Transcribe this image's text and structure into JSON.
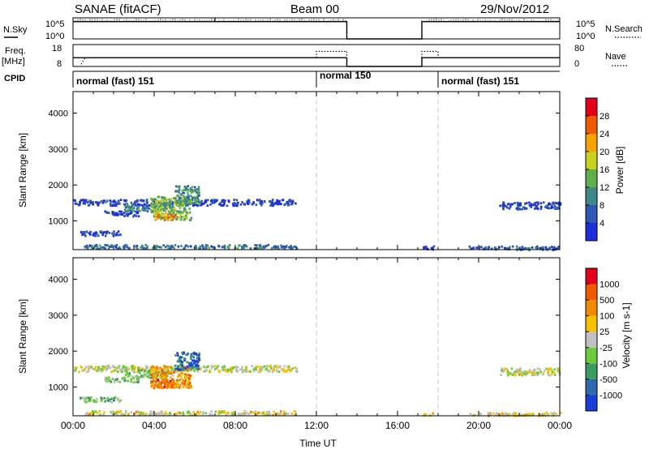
{
  "header": {
    "title": "SANAE (fitACF)",
    "beam": "Beam 00",
    "date": "29/Nov/2012"
  },
  "top_panels": {
    "nsky_label": "N.Sky",
    "nsearch_label": "N.Search",
    "left_ticks": [
      "10^5",
      "10^0"
    ],
    "right_ticks": [
      "10^5",
      "10^0"
    ],
    "freq_label": "Freq.",
    "freq_unit": "[MHz]",
    "freq_ticks": [
      "18",
      "8"
    ],
    "nave_label": "Nave",
    "nave_ticks": [
      "80",
      "0"
    ],
    "cpid_label": "CPID"
  },
  "cpid": {
    "segments": [
      {
        "label": "normal (fast) 151",
        "start": 0.0,
        "end": 12.0
      },
      {
        "label": "normal 150",
        "start": 12.0,
        "end": 18.0
      },
      {
        "label": "normal (fast) 151",
        "start": 18.0,
        "end": 24.0
      }
    ]
  },
  "chart_data": [
    {
      "type": "line",
      "name": "N.Sky / N.Search",
      "xlim": [
        0,
        24
      ],
      "ylim": [
        0,
        1
      ],
      "active_intervals": [
        [
          0.0,
          13.5
        ],
        [
          17.2,
          24.0
        ]
      ],
      "x": [
        0.0,
        13.5,
        13.5,
        17.2,
        17.2,
        24.0
      ],
      "y": [
        0.82,
        0.82,
        0.0,
        0.0,
        0.82,
        0.82
      ],
      "spikes_x": [
        7.0
      ]
    },
    {
      "type": "line",
      "name": "Freq. / Nave",
      "xlim": [
        0,
        24
      ],
      "freq_ylim": [
        8,
        18
      ],
      "nave_ylim": [
        0,
        80
      ],
      "series": [
        {
          "name": "Freq.",
          "x": [
            0.0,
            13.5,
            13.5,
            17.2,
            17.2,
            24.0
          ],
          "y": [
            12.0,
            12.0,
            8.0,
            8.0,
            12.0,
            12.0
          ]
        },
        {
          "name": "Nave",
          "x": [
            12.0,
            13.5,
            17.2,
            18.0
          ],
          "y": [
            55,
            55,
            55,
            55
          ]
        }
      ]
    },
    {
      "type": "heatmap",
      "variable": "Power",
      "xlabel": "",
      "ylabel": "Slant Range [km]",
      "xlim": [
        0,
        24
      ],
      "ylim": [
        200,
        4600
      ],
      "yticks": [
        "1000",
        "2000",
        "3000",
        "4000"
      ],
      "colorbar_label": "Power [dB]",
      "colorbar_ticks": [
        "4",
        "8",
        "12",
        "16",
        "20",
        "24",
        "28"
      ],
      "colors": [
        "#1f2fd6",
        "#2e57b8",
        "#3f8a88",
        "#5fb04c",
        "#c9d21f",
        "#f4a300",
        "#f05a00",
        "#e3001b"
      ],
      "regions": [
        {
          "t0": 0.0,
          "t1": 11.0,
          "r0": 1450,
          "r1": 1620,
          "level": 0.12
        },
        {
          "t0": 2.5,
          "t1": 4.6,
          "r0": 1280,
          "r1": 1520,
          "level": 0.3
        },
        {
          "t0": 3.8,
          "t1": 5.8,
          "r0": 1050,
          "r1": 1700,
          "level": 0.45
        },
        {
          "t0": 4.0,
          "t1": 5.0,
          "r0": 1050,
          "r1": 1250,
          "level": 0.7
        },
        {
          "t0": 5.0,
          "t1": 6.2,
          "r0": 1500,
          "r1": 2000,
          "level": 0.35
        },
        {
          "t0": 0.3,
          "t1": 2.3,
          "r0": 600,
          "r1": 740,
          "level": 0.1
        },
        {
          "t0": 1.5,
          "t1": 3.2,
          "r0": 1150,
          "r1": 1300,
          "level": 0.1
        },
        {
          "t0": 0.5,
          "t1": 11.0,
          "r0": 250,
          "r1": 360,
          "level": 0.25
        },
        {
          "t0": 21.0,
          "t1": 24.0,
          "r0": 1350,
          "r1": 1550,
          "level": 0.12
        },
        {
          "t0": 17.2,
          "t1": 17.8,
          "r0": 220,
          "r1": 320,
          "level": 0.05
        },
        {
          "t0": 19.5,
          "t1": 24.0,
          "r0": 220,
          "r1": 320,
          "level": 0.2
        }
      ]
    },
    {
      "type": "heatmap",
      "variable": "Velocity",
      "xlabel": "Time UT",
      "ylabel": "Slant Range [km]",
      "xlim": [
        0,
        24
      ],
      "ylim": [
        200,
        4600
      ],
      "xticks": [
        "00:00",
        "04:00",
        "08:00",
        "12:00",
        "16:00",
        "20:00",
        "00:00"
      ],
      "yticks": [
        "1000",
        "2000",
        "3000",
        "4000"
      ],
      "colorbar_label": "Velocity [m s-1]",
      "colorbar_ticks": [
        "1000",
        "500",
        "100",
        "25",
        "-25",
        "-100",
        "-500",
        "-1000"
      ],
      "colors": [
        "#1a3fd6",
        "#2f6ab0",
        "#3c9b60",
        "#6ccb3a",
        "#c0c0c0",
        "#f5c000",
        "#f08a00",
        "#ef5a00",
        "#e3001b"
      ],
      "regions": [
        {
          "t0": 0.0,
          "t1": 11.0,
          "r0": 1450,
          "r1": 1620,
          "level": 0.5
        },
        {
          "t0": 2.5,
          "t1": 4.6,
          "r0": 1280,
          "r1": 1520,
          "level": 0.4
        },
        {
          "t0": 3.8,
          "t1": 5.8,
          "r0": 1000,
          "r1": 1600,
          "level": 0.7
        },
        {
          "t0": 4.0,
          "t1": 5.0,
          "r0": 1000,
          "r1": 1250,
          "level": 0.8
        },
        {
          "t0": 5.0,
          "t1": 6.2,
          "r0": 1500,
          "r1": 2000,
          "level": 0.15
        },
        {
          "t0": 0.3,
          "t1": 2.3,
          "r0": 600,
          "r1": 740,
          "level": 0.35
        },
        {
          "t0": 1.5,
          "t1": 3.2,
          "r0": 1150,
          "r1": 1300,
          "level": 0.4
        },
        {
          "t0": 0.5,
          "t1": 11.0,
          "r0": 250,
          "r1": 360,
          "level": 0.55
        },
        {
          "t0": 21.0,
          "t1": 24.0,
          "r0": 1350,
          "r1": 1550,
          "level": 0.5
        },
        {
          "t0": 17.2,
          "t1": 17.8,
          "r0": 220,
          "r1": 320,
          "level": 0.6
        },
        {
          "t0": 19.5,
          "t1": 24.0,
          "r0": 220,
          "r1": 320,
          "level": 0.55
        }
      ]
    }
  ]
}
